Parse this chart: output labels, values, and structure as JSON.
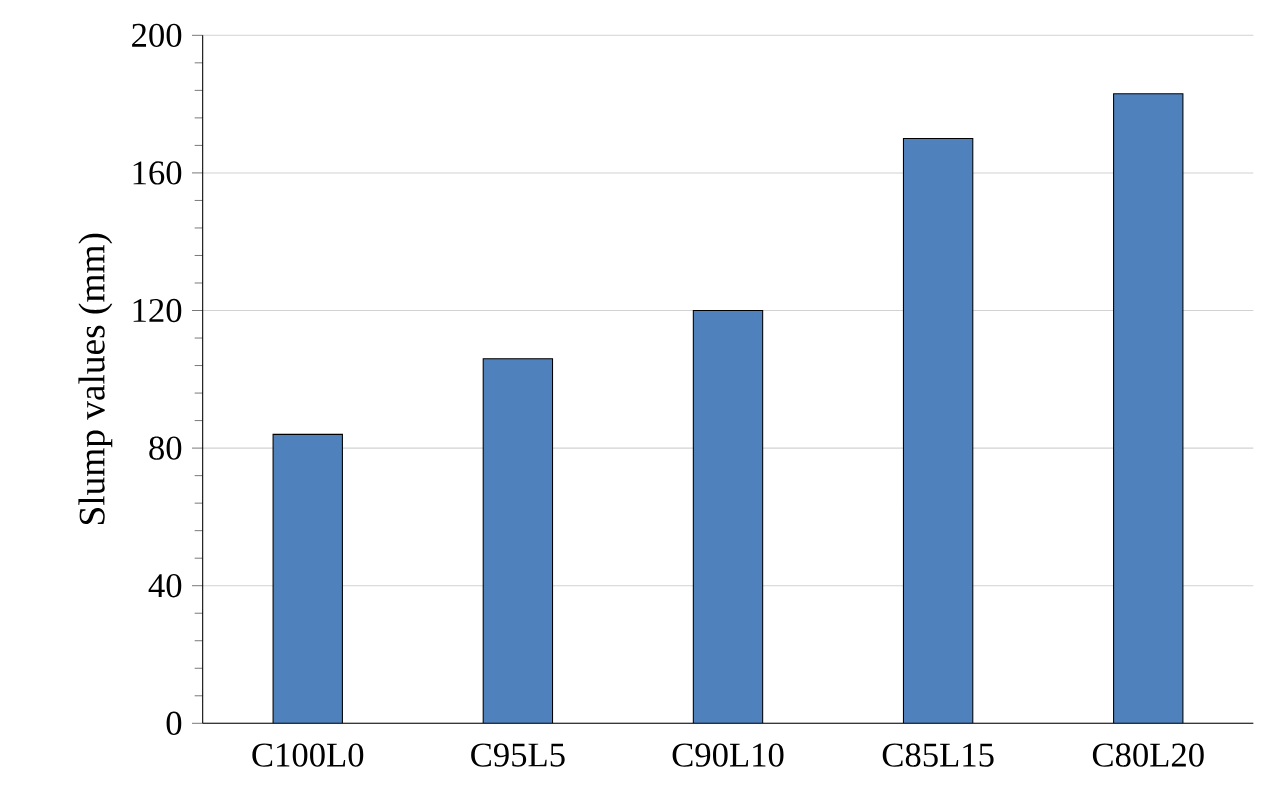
{
  "chart_data": {
    "type": "bar",
    "ylabel": "Slump values (mm)",
    "categories": [
      "C100L0",
      "C95L5",
      "C90L10",
      "C85L15",
      "C80L20"
    ],
    "values": [
      84,
      106,
      120,
      170,
      183
    ],
    "color": "#4f81bd",
    "ylim": [
      0,
      200
    ],
    "yticks": [
      0,
      40,
      80,
      120,
      160,
      200
    ],
    "grid": "y"
  }
}
